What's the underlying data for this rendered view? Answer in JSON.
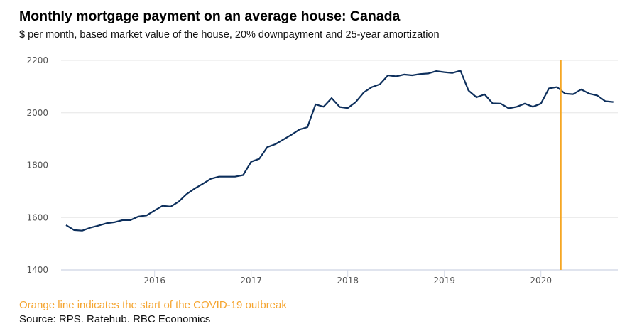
{
  "chart_data": {
    "type": "line",
    "title": "Monthly mortgage payment on an average house: Canada",
    "subtitle": "$ per month, based market value of the house, 20% downpayment and 25-year amortization",
    "xlabel": "",
    "ylabel": "",
    "ylim": [
      1400,
      2200
    ],
    "yticks": [
      "1400",
      "1600",
      "1800",
      "2000",
      "2200"
    ],
    "xticks": [
      "2016",
      "2017",
      "2018",
      "2019",
      "2020"
    ],
    "x_range": [
      "2015-01",
      "2020-11"
    ],
    "grid": true,
    "start_month": "2015-02",
    "series": [
      {
        "name": "Monthly mortgage payment",
        "color": "#0d2f5c",
        "x": [
          "2015-02",
          "2015-03",
          "2015-04",
          "2015-05",
          "2015-06",
          "2015-07",
          "2015-08",
          "2015-09",
          "2015-10",
          "2015-11",
          "2015-12",
          "2016-01",
          "2016-02",
          "2016-03",
          "2016-04",
          "2016-05",
          "2016-06",
          "2016-07",
          "2016-08",
          "2016-09",
          "2016-10",
          "2016-11",
          "2016-12",
          "2017-01",
          "2017-02",
          "2017-03",
          "2017-04",
          "2017-05",
          "2017-06",
          "2017-07",
          "2017-08",
          "2017-09",
          "2017-10",
          "2017-11",
          "2017-12",
          "2018-01",
          "2018-02",
          "2018-03",
          "2018-04",
          "2018-05",
          "2018-06",
          "2018-07",
          "2018-08",
          "2018-09",
          "2018-10",
          "2018-11",
          "2018-12",
          "2019-01",
          "2019-02",
          "2019-03",
          "2019-04",
          "2019-05",
          "2019-06",
          "2019-07",
          "2019-08",
          "2019-09",
          "2019-10",
          "2019-11",
          "2019-12",
          "2020-01",
          "2020-02",
          "2020-03",
          "2020-04",
          "2020-05",
          "2020-06",
          "2020-07",
          "2020-08",
          "2020-09",
          "2020-10"
        ],
        "values": [
          1571,
          1552,
          1550,
          1561,
          1569,
          1578,
          1582,
          1590,
          1590,
          1604,
          1608,
          1627,
          1645,
          1642,
          1661,
          1690,
          1711,
          1729,
          1748,
          1756,
          1756,
          1756,
          1762,
          1813,
          1824,
          1869,
          1880,
          1898,
          1916,
          1936,
          1945,
          2032,
          2023,
          2056,
          2022,
          2018,
          2041,
          2078,
          2098,
          2109,
          2143,
          2139,
          2146,
          2143,
          2148,
          2150,
          2159,
          2155,
          2152,
          2161,
          2085,
          2059,
          2070,
          2036,
          2035,
          2017,
          2023,
          2035,
          2023,
          2035,
          2093,
          2098,
          2073,
          2071,
          2089,
          2073,
          2066,
          2044,
          2041
        ]
      }
    ],
    "annotations": [
      {
        "type": "vertical-line",
        "x": "2020-03",
        "color": "#f5a623",
        "label": "Orange line indicates the start of the COVID-19 outbreak"
      }
    ],
    "source": "Source: RPS. Ratehub. RBC Economics"
  }
}
